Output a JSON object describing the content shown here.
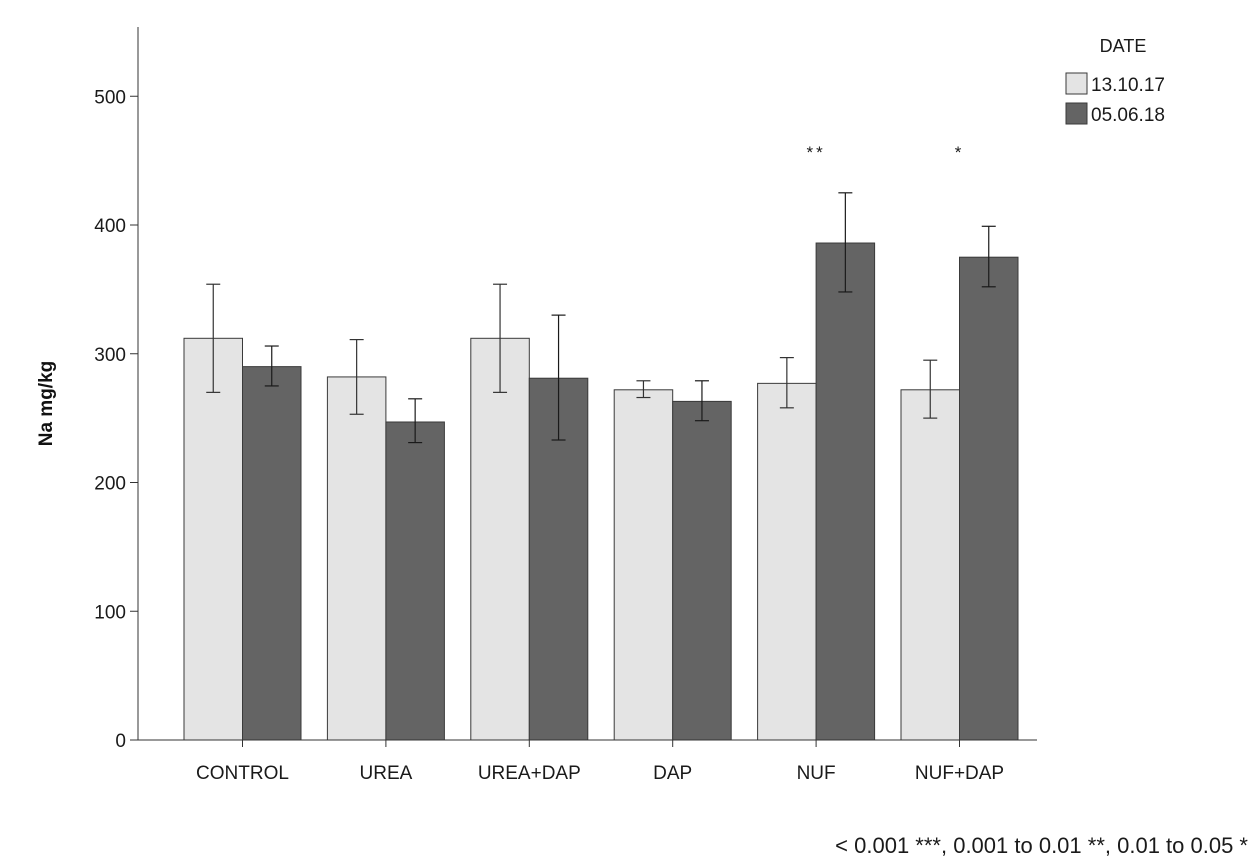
{
  "chart_data": {
    "type": "bar",
    "title": "",
    "xlabel": "",
    "ylabel": "Na mg/kg",
    "ylim": [
      0,
      550
    ],
    "yticks": [
      0,
      100,
      200,
      300,
      400,
      500
    ],
    "grid": false,
    "legend": {
      "title": "DATE",
      "placement": "top-right"
    },
    "categories": [
      "CONTROL",
      "UREA",
      "UREA+DAP",
      "DAP",
      "NUF",
      "NUF+DAP"
    ],
    "series": [
      {
        "name": "13.10.17",
        "color": "#e4e4e4",
        "values": [
          312,
          282,
          312,
          272,
          277,
          272
        ],
        "error_low": [
          270,
          253,
          270,
          266,
          258,
          250
        ],
        "error_high": [
          354,
          311,
          354,
          279,
          297,
          295
        ]
      },
      {
        "name": "05.06.18",
        "color": "#646464",
        "values": [
          290,
          247,
          281,
          263,
          386,
          375
        ],
        "error_low": [
          275,
          231,
          233,
          248,
          348,
          352
        ],
        "error_high": [
          306,
          265,
          330,
          279,
          425,
          399
        ]
      }
    ],
    "annotations": [
      {
        "category": "NUF",
        "text": "**"
      },
      {
        "category": "NUF+DAP",
        "text": "*"
      }
    ]
  },
  "footnote": "< 0.001 ***, 0.001 to 0.01  **, 0.01 to 0.05 *"
}
